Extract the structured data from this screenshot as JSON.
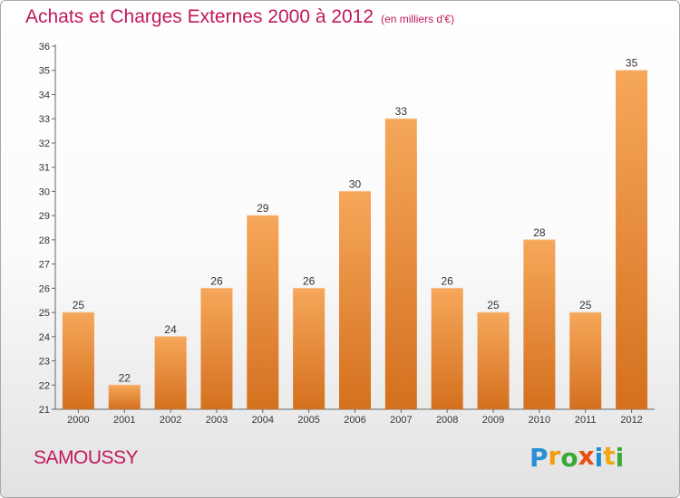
{
  "header": {
    "title": "Achats et Charges Externes 2000 à 2012",
    "subtitle": "(en milliers d'€)"
  },
  "footer": {
    "place": "SAMOUSSY",
    "logo": {
      "letters": [
        "P",
        "r",
        "o",
        "x",
        "i",
        "t",
        "i"
      ],
      "colors": [
        "#2b8fd6",
        "#f39c12",
        "#3aa935",
        "#e84e0f",
        "#1a8fd0",
        "#f3a712",
        "#3aa935"
      ]
    }
  },
  "colors": {
    "bar_top": "#f6a75a",
    "bar_bottom": "#d4701e",
    "accent": "#c2185b"
  },
  "chart_data": {
    "type": "bar",
    "title": "Achats et Charges Externes 2000 à 2012",
    "subtitle": "(en milliers d'€)",
    "categories": [
      "2000",
      "2001",
      "2002",
      "2003",
      "2004",
      "2005",
      "2006",
      "2007",
      "2008",
      "2009",
      "2010",
      "2011",
      "2012"
    ],
    "values": [
      25,
      22,
      24,
      26,
      29,
      26,
      30,
      33,
      26,
      25,
      28,
      25,
      35
    ],
    "data_labels": [
      "25",
      "22",
      "24",
      "26",
      "29",
      "26",
      "30",
      "33",
      "26",
      "25",
      "28",
      "25",
      "35"
    ],
    "y_ticks": [
      "21",
      "22",
      "23",
      "24",
      "25",
      "26",
      "27",
      "28",
      "29",
      "30",
      "31",
      "32",
      "33",
      "34",
      "35",
      "36"
    ],
    "ylim": [
      21,
      36
    ],
    "grid": false,
    "xlabel": "",
    "ylabel": ""
  }
}
